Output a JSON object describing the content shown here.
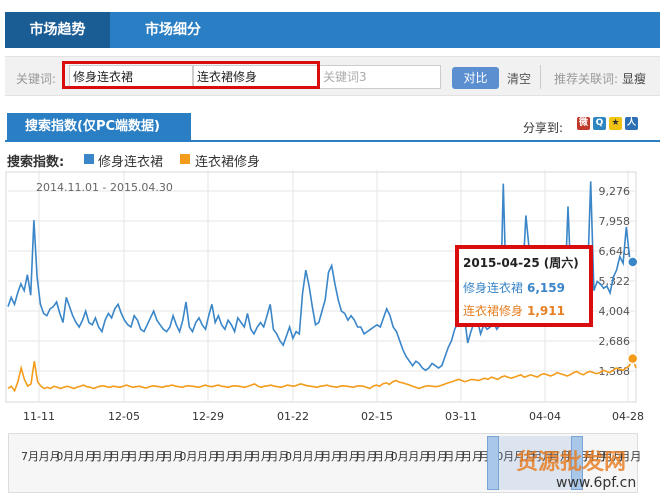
{
  "tabs": [
    {
      "label": "市场趋势",
      "active": true
    },
    {
      "label": "市场细分",
      "active": false
    }
  ],
  "keywords": {
    "label": "关键词:",
    "inputs": [
      {
        "value": "修身连衣裙",
        "placeholder": ""
      },
      {
        "value": "连衣裙修身",
        "placeholder": ""
      },
      {
        "value": "",
        "placeholder": "关键词3"
      }
    ],
    "compare_label": "对比",
    "clear_label": "清空",
    "recommend_label": "推荐关联词:",
    "recommend_word": "显瘦"
  },
  "section": {
    "title": "搜索指数(仅PC端数据)",
    "share_label": "分享到:"
  },
  "legend": {
    "label": "搜索指数:",
    "series": [
      {
        "name": "修身连衣裙",
        "color": "#3a86c8"
      },
      {
        "name": "连衣裙修身",
        "color": "#f39c1b"
      }
    ]
  },
  "chart_data": {
    "type": "line",
    "date_range": "2014.11.01 - 2015.04.30",
    "x_ticks": [
      "11-11",
      "12-05",
      "12-29",
      "01-22",
      "02-15",
      "03-11",
      "04-04",
      "04-28"
    ],
    "y_ticks": [
      9276,
      7958,
      6640,
      5322,
      4004,
      2686,
      1368
    ],
    "ylim": [
      50,
      10200
    ],
    "series": [
      {
        "name": "修身连衣裙",
        "color": "#3a86c8",
        "values": [
          4200,
          4600,
          4300,
          4800,
          5200,
          4900,
          5600,
          4700,
          8000,
          5500,
          4300,
          3900,
          3800,
          4100,
          4200,
          4400,
          3900,
          3500,
          4600,
          4200,
          3800,
          3500,
          3300,
          3600,
          4000,
          3500,
          3400,
          3700,
          3300,
          3100,
          3600,
          3900,
          3700,
          4100,
          4300,
          3900,
          3600,
          3400,
          3300,
          3800,
          3600,
          3200,
          3100,
          3400,
          3700,
          4000,
          3600,
          3400,
          3200,
          3100,
          3300,
          3800,
          3400,
          3100,
          3600,
          4400,
          3300,
          3100,
          3500,
          3700,
          3400,
          3200,
          3800,
          4300,
          3500,
          3800,
          3400,
          3200,
          3600,
          3400,
          3100,
          3700,
          3500,
          3300,
          3900,
          3200,
          3000,
          3300,
          3500,
          3300,
          3800,
          4300,
          3200,
          3000,
          2700,
          2500,
          2900,
          3300,
          2800,
          3100,
          3000,
          4800,
          5800,
          5100,
          4200,
          3400,
          3500,
          4000,
          4500,
          5700,
          6000,
          5200,
          4500,
          4000,
          3900,
          3600,
          3800,
          3600,
          3300,
          3300,
          3000,
          3100,
          3200,
          3300,
          3400,
          3300,
          3700,
          4100,
          3800,
          3300,
          3100,
          2700,
          2300,
          2000,
          1800,
          1600,
          1800,
          1700,
          1500,
          1400,
          1500,
          1700,
          1600,
          1500,
          1600,
          2000,
          2400,
          2700,
          3200,
          3500,
          3700,
          3800,
          2600,
          3100,
          3500,
          3600,
          3000,
          3400,
          3200,
          3300,
          3500,
          3200,
          3400,
          9600,
          4400,
          3700,
          3900,
          4000,
          4400,
          5500,
          8200,
          6700,
          5300,
          4500,
          4600,
          4400,
          4600,
          4400,
          4500,
          4600,
          5600,
          5100,
          4800,
          8600,
          5000,
          4800,
          4900,
          5600,
          5400,
          5300,
          9700,
          4900,
          5300,
          5200,
          5000,
          5100,
          4800,
          5500,
          5800,
          6400,
          6100,
          7700,
          6400,
          6159,
          6000
        ]
      },
      {
        "name": "连衣裙修身",
        "color": "#f39c1b",
        "values": [
          600,
          700,
          500,
          900,
          1500,
          1000,
          700,
          800,
          1800,
          900,
          700,
          600,
          650,
          600,
          700,
          650,
          600,
          650,
          700,
          650,
          600,
          650,
          700,
          750,
          680,
          650,
          600,
          650,
          700,
          720,
          680,
          650,
          700,
          680,
          650,
          700,
          750,
          700,
          650,
          680,
          700,
          650,
          620,
          680,
          720,
          700,
          680,
          650,
          700,
          720,
          750,
          700,
          680,
          650,
          700,
          720,
          700,
          680,
          650,
          700,
          750,
          700,
          680,
          720,
          750,
          700,
          680,
          650,
          700,
          720,
          700,
          680,
          650,
          700,
          750,
          800,
          700,
          650,
          700,
          720,
          750,
          700,
          680,
          650,
          700,
          750,
          720,
          700,
          750,
          800,
          760,
          720,
          700,
          680,
          650,
          700,
          720,
          750,
          700,
          680,
          650,
          700,
          720,
          700,
          680,
          650,
          700,
          720,
          700,
          650,
          600,
          700,
          750,
          700,
          800,
          850,
          780,
          900,
          950,
          880,
          850,
          800,
          760,
          700,
          650,
          600,
          650,
          700,
          720,
          700,
          680,
          700,
          750,
          800,
          850,
          900,
          950,
          1000,
          950,
          900,
          950,
          1000,
          980,
          950,
          1000,
          1050,
          1000,
          1100,
          1050,
          1000,
          1100,
          1150,
          1100,
          1050,
          1100,
          1150,
          1200,
          1100,
          1150,
          1200,
          1150,
          1100,
          1200,
          1250,
          1200,
          1150,
          1200,
          1300,
          1250,
          1200,
          1150,
          1200,
          1300,
          1350,
          1250,
          1200,
          1300,
          1350,
          1300,
          1250,
          1300,
          1400,
          1350,
          1300,
          1400,
          1500,
          1450,
          1400,
          1500,
          1600,
          1911,
          1500
        ]
      }
    ],
    "tooltip": {
      "date": "2015-04-25",
      "weekday": "(周六)",
      "rows": [
        {
          "name": "修身连衣裙",
          "value": "6,159"
        },
        {
          "name": "连衣裙修身",
          "value": "1,911"
        }
      ]
    }
  },
  "navigator": {
    "labels": [
      "7月",
      "月月",
      "0月",
      "月月",
      "月月",
      "月月",
      "月月",
      "月月",
      "月月",
      "0月",
      "月月",
      "月月",
      "月月",
      "月月",
      "月月",
      "0月",
      "月月",
      "月月",
      "月月",
      "月月",
      "月月",
      "0月",
      "月月",
      "月月",
      "月月",
      "月月",
      "月月",
      "0月",
      "月月",
      "月月",
      "月月",
      "月月",
      "月月",
      "月月",
      "月月"
    ]
  },
  "watermark": {
    "text": "货源批发网",
    "url": "www.6pf.cn"
  }
}
